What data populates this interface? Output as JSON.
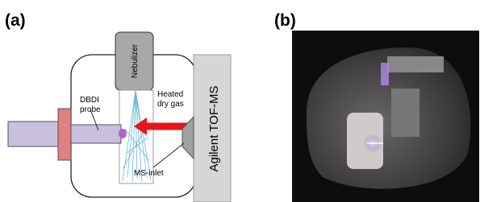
{
  "panels": [
    {
      "label": "(a)",
      "nebulizer": "Nebulizer",
      "gas": [
        "Heated",
        "dry gas"
      ],
      "probe": [
        "DBDI",
        "probe"
      ],
      "inlet": "MS-inlet",
      "instrument": "Agilent TOF-MS"
    },
    {
      "label": "(b)"
    }
  ]
}
